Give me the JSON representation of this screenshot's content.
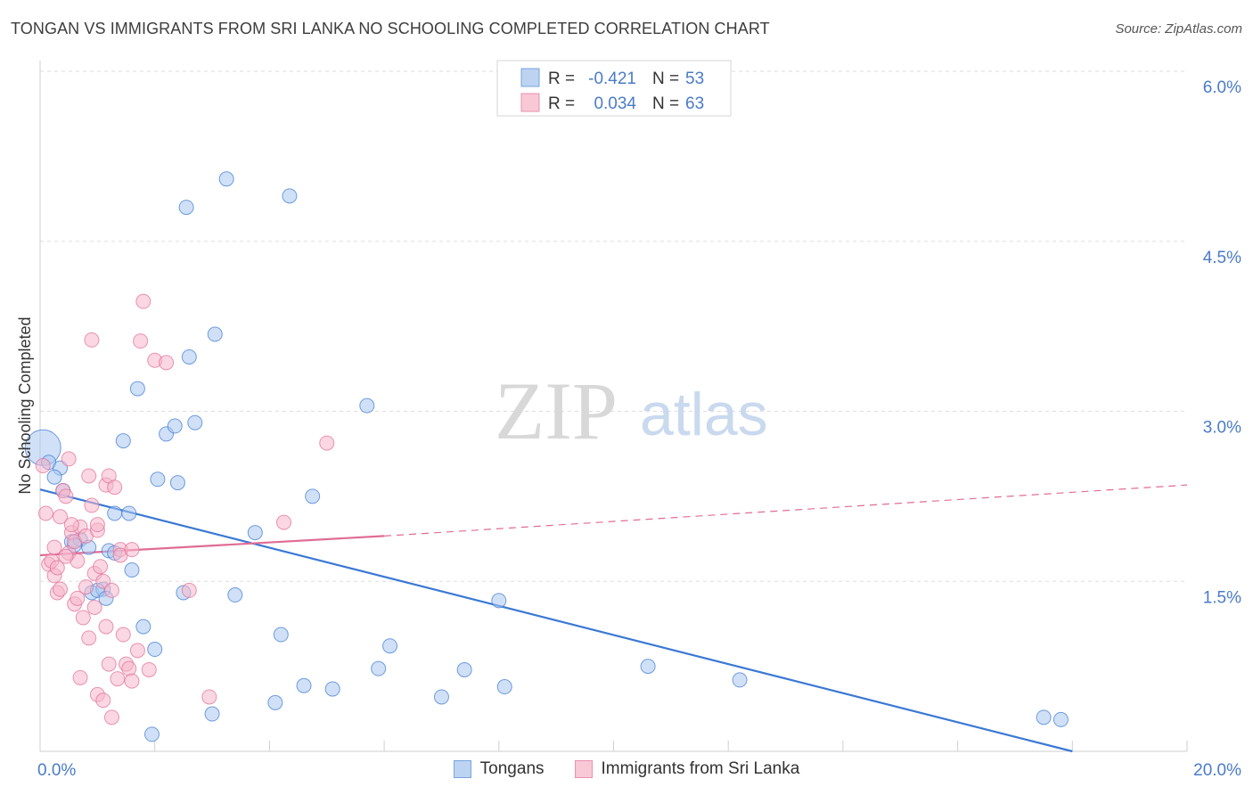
{
  "title": "TONGAN VS IMMIGRANTS FROM SRI LANKA NO SCHOOLING COMPLETED CORRELATION CHART",
  "source": "Source: ZipAtlas.com",
  "watermark": {
    "zip": "ZIP",
    "atlas": "atlas"
  },
  "colors": {
    "blue": "#3a78d4",
    "blue_fill": "#a9c7ef",
    "pink": "#e06c95",
    "pink_fill": "#f5b6ca",
    "label_blue": "#4a7bc8",
    "grid": "#dedede"
  },
  "chart_data": {
    "type": "scatter",
    "xlabel": "",
    "ylabel": "No Schooling Completed",
    "xlim": [
      0,
      20
    ],
    "ylim": [
      0,
      6.0
    ],
    "x_tick_labels": [
      "0.0%",
      "20.0%"
    ],
    "y_ticks": [
      1.5,
      3.0,
      4.5,
      6.0
    ],
    "y_tick_labels": [
      "1.5%",
      "3.0%",
      "4.5%",
      "6.0%"
    ],
    "grid": true,
    "legend_placement": "top-center",
    "stats": [
      {
        "r_label": "R =",
        "r_value": "-0.421",
        "n_label": "N =",
        "n_value": "53"
      },
      {
        "r_label": "R =",
        "r_value": "0.034",
        "n_label": "N =",
        "n_value": "63"
      }
    ],
    "series": [
      {
        "name": "Tongans",
        "color": "#3a78d4",
        "points": [
          [
            0.05,
            2.68
          ],
          [
            0.15,
            2.55
          ],
          [
            0.35,
            2.5
          ],
          [
            0.25,
            2.42
          ],
          [
            0.4,
            2.3
          ],
          [
            0.55,
            1.85
          ],
          [
            0.7,
            1.87
          ],
          [
            0.85,
            1.8
          ],
          [
            0.6,
            1.82
          ],
          [
            0.9,
            1.4
          ],
          [
            1.1,
            1.43
          ],
          [
            1.0,
            1.42
          ],
          [
            1.2,
            1.77
          ],
          [
            1.3,
            1.75
          ],
          [
            1.3,
            2.1
          ],
          [
            1.55,
            2.1
          ],
          [
            1.6,
            1.6
          ],
          [
            1.8,
            1.1
          ],
          [
            1.95,
            0.15
          ],
          [
            2.0,
            0.9
          ],
          [
            1.45,
            2.74
          ],
          [
            1.7,
            3.2
          ],
          [
            2.05,
            2.4
          ],
          [
            2.2,
            2.8
          ],
          [
            2.35,
            2.87
          ],
          [
            2.4,
            2.37
          ],
          [
            2.55,
            4.8
          ],
          [
            2.6,
            3.48
          ],
          [
            2.7,
            2.9
          ],
          [
            2.5,
            1.4
          ],
          [
            3.0,
            0.33
          ],
          [
            3.25,
            5.05
          ],
          [
            3.05,
            3.68
          ],
          [
            3.4,
            1.38
          ],
          [
            3.75,
            1.93
          ],
          [
            4.1,
            0.43
          ],
          [
            4.2,
            1.03
          ],
          [
            4.35,
            4.9
          ],
          [
            4.6,
            0.58
          ],
          [
            4.75,
            2.25
          ],
          [
            5.1,
            0.55
          ],
          [
            5.7,
            3.05
          ],
          [
            5.9,
            0.73
          ],
          [
            6.1,
            0.93
          ],
          [
            7.0,
            0.48
          ],
          [
            7.4,
            0.72
          ],
          [
            8.0,
            1.33
          ],
          [
            8.1,
            0.57
          ],
          [
            10.6,
            0.75
          ],
          [
            12.2,
            0.63
          ],
          [
            17.5,
            0.3
          ],
          [
            17.8,
            0.28
          ],
          [
            1.15,
            1.35
          ]
        ]
      },
      {
        "name": "Immigrants from Sri Lanka",
        "color": "#e06c95",
        "points": [
          [
            0.05,
            2.52
          ],
          [
            0.1,
            2.1
          ],
          [
            0.15,
            1.65
          ],
          [
            0.2,
            1.68
          ],
          [
            0.25,
            1.8
          ],
          [
            0.25,
            1.55
          ],
          [
            0.3,
            1.4
          ],
          [
            0.35,
            1.43
          ],
          [
            0.35,
            2.07
          ],
          [
            0.4,
            2.3
          ],
          [
            0.45,
            2.25
          ],
          [
            0.5,
            1.75
          ],
          [
            0.5,
            2.58
          ],
          [
            0.55,
            1.93
          ],
          [
            0.6,
            1.85
          ],
          [
            0.6,
            1.3
          ],
          [
            0.65,
            1.35
          ],
          [
            0.7,
            0.65
          ],
          [
            0.7,
            1.98
          ],
          [
            0.75,
            1.18
          ],
          [
            0.8,
            1.9
          ],
          [
            0.85,
            2.43
          ],
          [
            0.85,
            1.0
          ],
          [
            0.9,
            2.17
          ],
          [
            0.9,
            3.63
          ],
          [
            0.95,
            1.57
          ],
          [
            0.95,
            1.27
          ],
          [
            1.0,
            0.5
          ],
          [
            1.0,
            1.95
          ],
          [
            1.05,
            1.63
          ],
          [
            1.1,
            0.45
          ],
          [
            1.1,
            1.5
          ],
          [
            1.15,
            2.35
          ],
          [
            1.2,
            0.77
          ],
          [
            1.2,
            2.43
          ],
          [
            1.25,
            1.42
          ],
          [
            1.25,
            0.3
          ],
          [
            1.3,
            2.33
          ],
          [
            1.35,
            0.64
          ],
          [
            1.4,
            1.78
          ],
          [
            1.4,
            1.73
          ],
          [
            1.45,
            1.03
          ],
          [
            1.5,
            0.77
          ],
          [
            1.55,
            0.73
          ],
          [
            1.6,
            0.62
          ],
          [
            1.6,
            1.78
          ],
          [
            1.7,
            0.89
          ],
          [
            1.75,
            3.62
          ],
          [
            1.8,
            3.97
          ],
          [
            1.9,
            0.72
          ],
          [
            2.0,
            3.45
          ],
          [
            2.2,
            3.43
          ],
          [
            2.6,
            1.42
          ],
          [
            2.95,
            0.48
          ],
          [
            4.25,
            2.02
          ],
          [
            5.0,
            2.72
          ],
          [
            0.3,
            1.62
          ],
          [
            0.55,
            2.0
          ],
          [
            0.65,
            1.68
          ],
          [
            0.8,
            1.45
          ],
          [
            1.0,
            2.0
          ],
          [
            1.15,
            1.1
          ],
          [
            0.45,
            1.72
          ]
        ]
      }
    ],
    "trend_lines": [
      {
        "series": "Tongans",
        "x_start": 0,
        "y_start": 2.31,
        "x_end": 18.0,
        "y_end": 0.0,
        "style": "solid"
      },
      {
        "series": "Immigrants from Sri Lanka",
        "x_start": 0,
        "y_start": 1.73,
        "x_end": 6.0,
        "y_end": 1.9,
        "style": "solid"
      },
      {
        "series": "Immigrants from Sri Lanka",
        "x_start": 6.0,
        "y_start": 1.9,
        "x_end": 20.0,
        "y_end": 2.35,
        "style": "dashed"
      }
    ]
  }
}
